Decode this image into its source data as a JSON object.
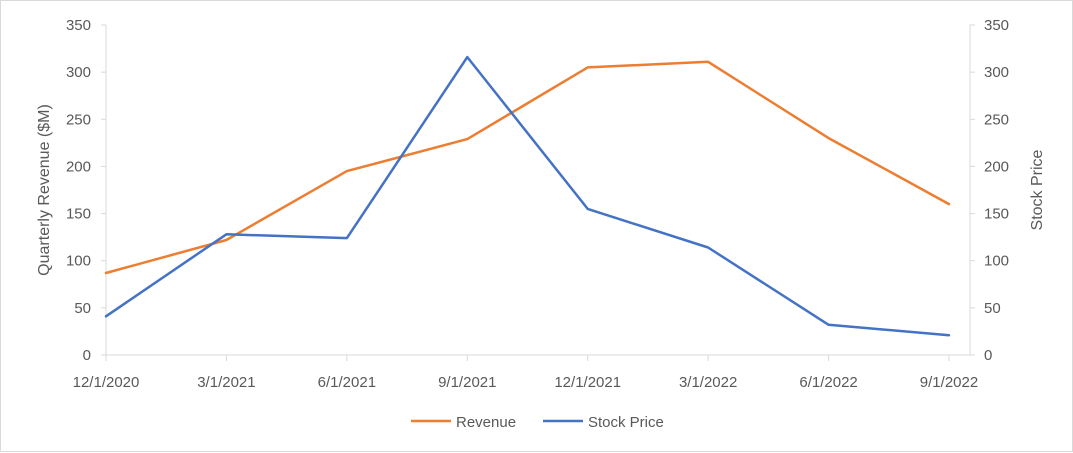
{
  "chart_data": {
    "type": "line",
    "categories": [
      "12/1/2020",
      "3/1/2021",
      "6/1/2021",
      "9/1/2021",
      "12/1/2021",
      "3/1/2022",
      "6/1/2022",
      "9/1/2022"
    ],
    "series": [
      {
        "name": "Revenue",
        "axis": "left",
        "color": "#ED7D31",
        "values": [
          87,
          122,
          195,
          229,
          305,
          311,
          230,
          160
        ]
      },
      {
        "name": "Stock Price",
        "axis": "right",
        "color": "#4472C4",
        "values": [
          41,
          128,
          124,
          316,
          155,
          114,
          32,
          21
        ]
      }
    ],
    "ylabel": "Quarterly Revenue ($M)",
    "y2label": "Stock Price",
    "ylim": [
      0,
      350
    ],
    "y2lim": [
      0,
      350
    ],
    "yticks": [
      "0",
      "50",
      "100",
      "150",
      "200",
      "250",
      "300",
      "350"
    ],
    "y2ticks": [
      "0",
      "50",
      "100",
      "150",
      "200",
      "250",
      "300",
      "350"
    ],
    "grid": false,
    "legend": "bottom"
  }
}
